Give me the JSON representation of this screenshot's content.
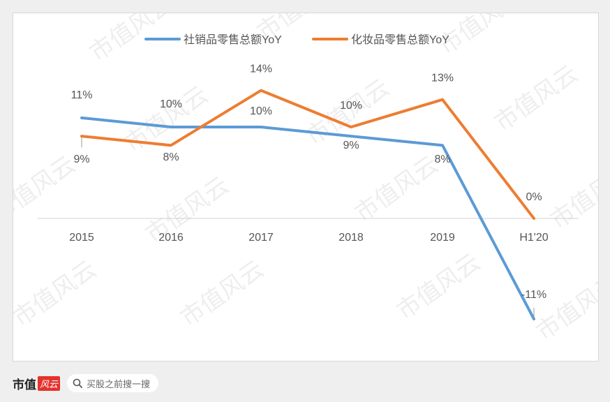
{
  "chart_data": {
    "type": "line",
    "categories": [
      "2015",
      "2016",
      "2017",
      "2018",
      "2019",
      "H1'20"
    ],
    "series": [
      {
        "name": "社销品零售总额YoY",
        "color": "#5b9bd5",
        "values": [
          11,
          10,
          10,
          9,
          8,
          -11
        ],
        "labels": [
          "11%",
          "10%",
          "10%",
          "9%",
          "8%",
          "-11%"
        ]
      },
      {
        "name": "化妆品零售总额YoY",
        "color": "#ed7d31",
        "values": [
          9,
          8,
          14,
          10,
          13,
          0
        ],
        "labels": [
          "9%",
          "8%",
          "14%",
          "10%",
          "13%",
          "0%"
        ]
      }
    ],
    "legend": "top",
    "grid": false,
    "ylim": [
      -12,
      16
    ]
  },
  "watermark": "市值风云",
  "footer": {
    "brand": "市值",
    "brand_mark": "风云",
    "search_placeholder": "买股之前搜一搜",
    "search_icon": "search-icon"
  }
}
